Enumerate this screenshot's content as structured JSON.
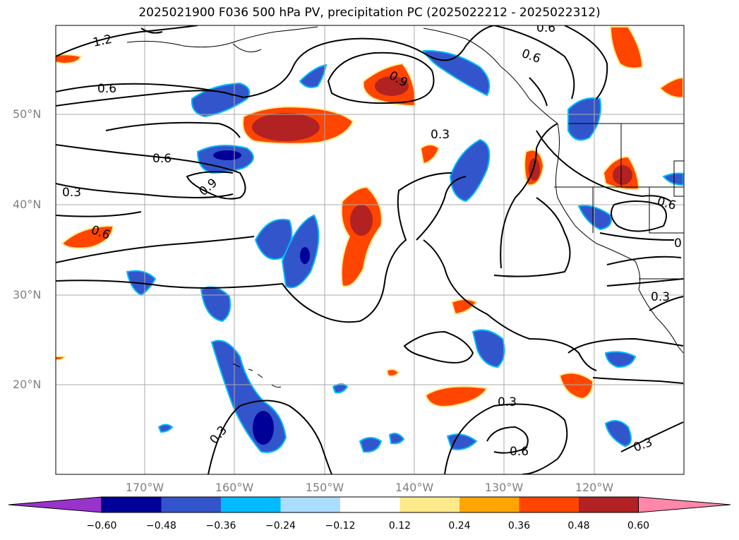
{
  "title": "2025021900 F036 500 hPa PV, precipitation PC (2025022212 - 2025022312)",
  "lat_labels": [
    "50°N",
    "40°N",
    "30°N",
    "20°N"
  ],
  "lon_labels": [
    "170°W",
    "160°W",
    "150°W",
    "140°W",
    "130°W",
    "120°W"
  ],
  "contour_labels": [
    "1.2",
    "0.6",
    "0.9",
    "0.6",
    "0.6",
    "0.9",
    "0.3",
    "0.3",
    "0.6",
    "0.3",
    "0.6",
    "0.3",
    "0.6",
    "0.6",
    "0.3",
    "0",
    "0.3"
  ],
  "colorbar": {
    "ticks": [
      "−0.60",
      "−0.48",
      "−0.36",
      "−0.24",
      "−0.12",
      "0.12",
      "0.24",
      "0.36",
      "0.48",
      "0.60"
    ],
    "colors": [
      "#9933cc",
      "#000099",
      "#3355cc",
      "#00bbff",
      "#aaddff",
      "#ffffff",
      "#ffe98a",
      "#ffa500",
      "#ff4500",
      "#b22222",
      "#ff88aa"
    ]
  },
  "palette": {
    "neg_strong": "#000099",
    "neg_mid": "#3355cc",
    "neg_light": "#00bbff",
    "neg_pale": "#aaddff",
    "pos_pale": "#ffe98a",
    "pos_light": "#ffa500",
    "pos_mid": "#ff4500",
    "pos_strong": "#b22222"
  }
}
